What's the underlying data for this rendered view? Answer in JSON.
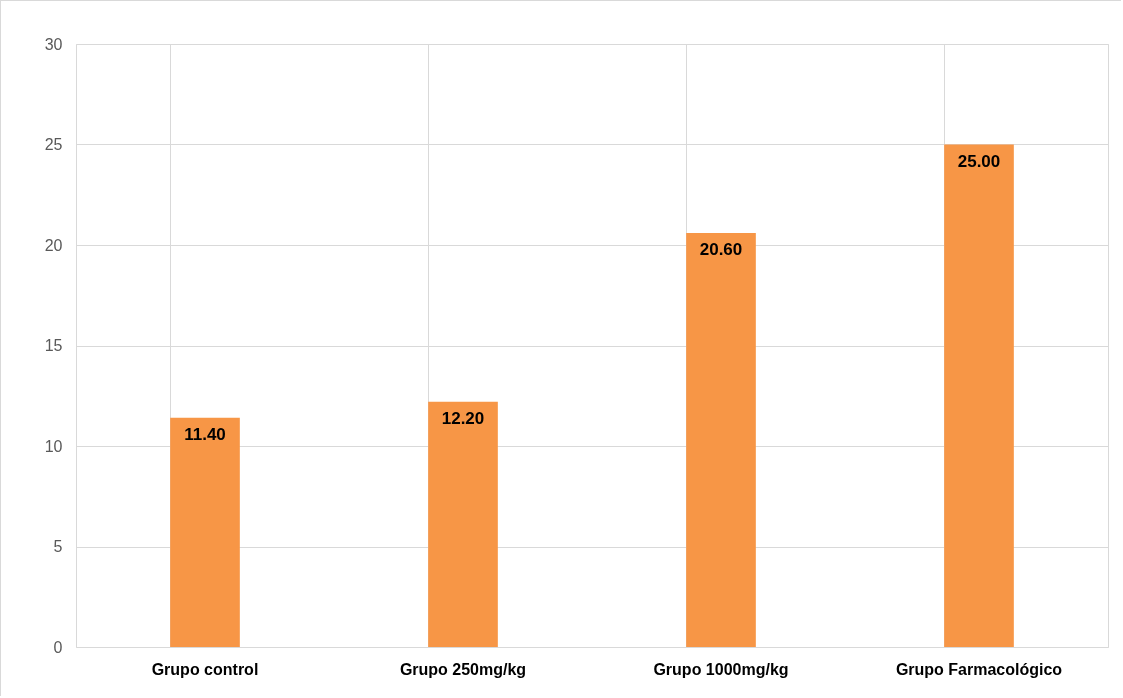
{
  "chart_data": {
    "type": "bar",
    "categories": [
      "Grupo control",
      "Grupo 250mg/kg",
      "Grupo 1000mg/kg",
      "Grupo Farmacológico"
    ],
    "values": [
      11.4,
      12.2,
      20.6,
      25.0
    ],
    "value_labels": [
      "11.40",
      "12.20",
      "20.60",
      "25.00"
    ],
    "color": "#f79646",
    "ylim": [
      0,
      30
    ],
    "yticks": [
      0,
      5,
      10,
      15,
      20,
      25,
      30
    ],
    "grid": true
  }
}
